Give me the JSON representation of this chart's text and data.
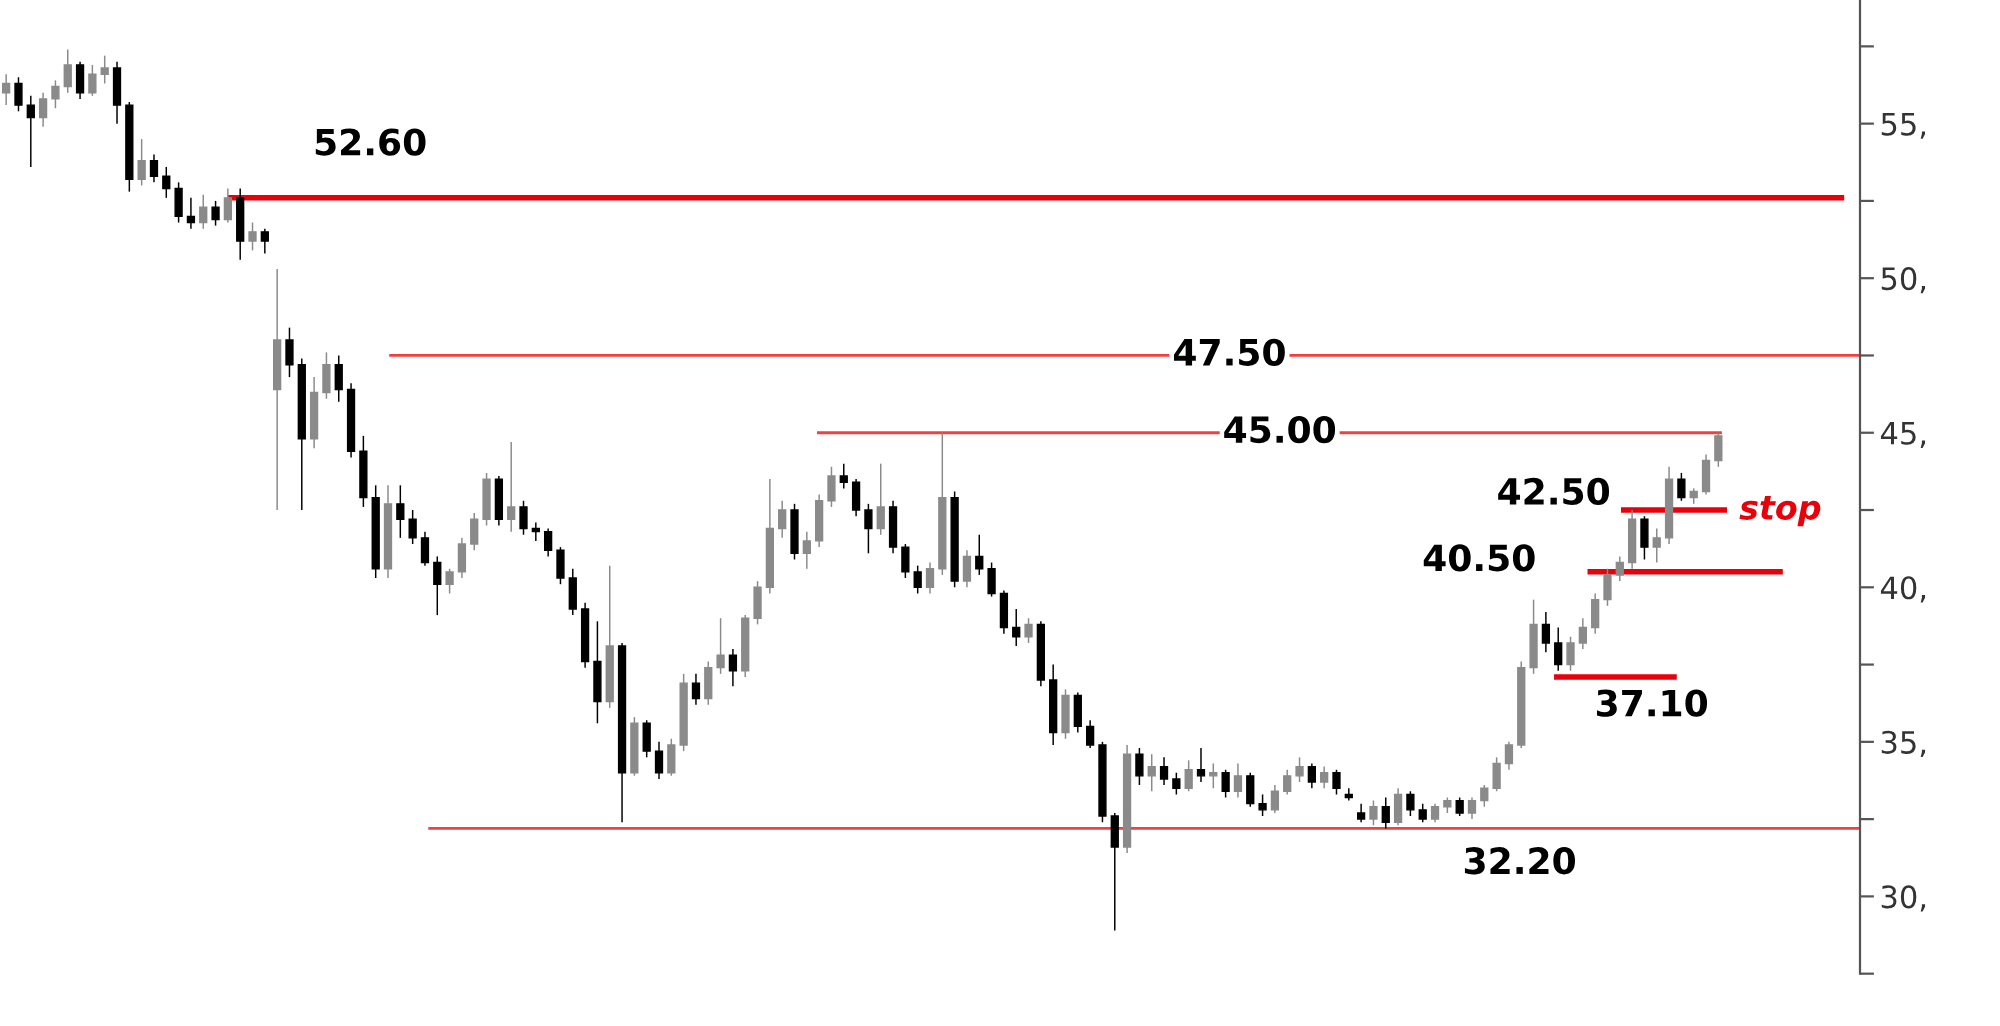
{
  "chart_data": {
    "type": "candlestick",
    "categories": [
      null,
      null,
      null,
      null,
      null,
      null,
      null,
      null,
      null,
      null,
      null,
      null,
      null,
      null,
      null,
      null,
      null,
      null,
      null,
      null,
      null,
      null,
      null,
      null,
      null,
      null,
      null,
      null,
      null,
      null,
      null,
      null,
      null,
      null,
      null,
      null,
      null,
      null,
      null,
      null,
      null,
      null,
      null,
      null,
      null,
      null,
      null,
      null,
      null,
      null,
      null,
      null,
      null,
      null,
      null,
      null,
      null,
      null,
      null,
      null,
      null,
      null,
      null,
      null,
      null,
      null,
      null,
      null,
      null,
      null,
      null,
      null,
      null,
      null,
      null,
      null,
      null,
      null,
      null,
      null,
      null,
      null,
      null,
      null,
      null,
      null,
      null,
      null,
      null,
      null,
      null,
      null,
      null,
      null,
      null,
      null,
      null,
      null,
      null,
      null,
      null,
      null,
      null,
      null,
      null,
      null,
      null,
      null,
      null,
      null,
      null,
      null,
      null,
      null,
      null,
      null,
      null,
      null,
      null,
      null,
      null,
      null,
      null,
      null,
      null,
      null,
      null,
      null,
      null,
      null,
      null,
      null,
      null,
      null,
      null,
      null,
      null,
      null,
      null,
      null,
      null,
      null,
      null,
      null,
      null,
      null,
      null,
      null,
      null,
      null,
      null
    ],
    "ohlc": [
      [
        56.0,
        56.6,
        55.6,
        56.3
      ],
      [
        56.3,
        56.5,
        55.4,
        55.6
      ],
      [
        55.6,
        55.9,
        53.6,
        55.2
      ],
      [
        55.2,
        56.0,
        54.9,
        55.8
      ],
      [
        55.8,
        56.4,
        55.5,
        56.2
      ],
      [
        56.2,
        57.4,
        56.0,
        56.9
      ],
      [
        56.9,
        57.0,
        55.8,
        56.0
      ],
      [
        56.0,
        56.9,
        55.9,
        56.6
      ],
      [
        56.6,
        57.2,
        56.3,
        56.8
      ],
      [
        56.8,
        57.0,
        55.0,
        55.6
      ],
      [
        55.6,
        55.7,
        52.8,
        53.2
      ],
      [
        53.2,
        54.5,
        53.0,
        53.8
      ],
      [
        53.8,
        54.0,
        53.1,
        53.3
      ],
      [
        53.3,
        53.6,
        52.6,
        52.9
      ],
      [
        52.9,
        53.1,
        51.8,
        52.0
      ],
      [
        52.0,
        52.6,
        51.6,
        51.8
      ],
      [
        51.8,
        52.7,
        51.6,
        52.3
      ],
      [
        52.3,
        52.5,
        51.7,
        51.9
      ],
      [
        51.9,
        52.9,
        51.8,
        52.6
      ],
      [
        52.6,
        52.9,
        50.6,
        51.2
      ],
      [
        51.2,
        51.8,
        50.9,
        51.5
      ],
      [
        51.5,
        51.6,
        50.8,
        51.2
      ],
      [
        46.4,
        50.3,
        42.5,
        48.0
      ],
      [
        48.0,
        48.4,
        46.8,
        47.2
      ],
      [
        47.2,
        47.4,
        42.5,
        44.8
      ],
      [
        44.8,
        46.8,
        44.5,
        46.3
      ],
      [
        46.3,
        47.6,
        46.1,
        47.2
      ],
      [
        47.2,
        47.5,
        46.0,
        46.4
      ],
      [
        46.4,
        46.6,
        44.2,
        44.4
      ],
      [
        44.4,
        44.9,
        42.6,
        42.9
      ],
      [
        42.9,
        43.3,
        40.3,
        40.6
      ],
      [
        40.6,
        43.3,
        40.3,
        42.7
      ],
      [
        42.7,
        43.3,
        41.6,
        42.2
      ],
      [
        42.2,
        42.5,
        41.4,
        41.6
      ],
      [
        41.6,
        41.8,
        40.7,
        40.8
      ],
      [
        40.8,
        41.0,
        39.1,
        40.1
      ],
      [
        40.1,
        40.6,
        39.8,
        40.5
      ],
      [
        40.5,
        41.6,
        40.3,
        41.4
      ],
      [
        41.4,
        42.4,
        41.2,
        42.2
      ],
      [
        42.2,
        43.7,
        42.0,
        43.5
      ],
      [
        43.5,
        43.6,
        42.0,
        42.2
      ],
      [
        42.2,
        44.7,
        41.8,
        42.6
      ],
      [
        42.6,
        42.8,
        41.7,
        41.9
      ],
      [
        41.9,
        42.1,
        41.5,
        41.8
      ],
      [
        41.8,
        41.9,
        41.0,
        41.2
      ],
      [
        41.2,
        41.3,
        40.1,
        40.3
      ],
      [
        40.3,
        40.6,
        39.1,
        39.3
      ],
      [
        39.3,
        39.5,
        37.4,
        37.6
      ],
      [
        37.6,
        38.9,
        35.6,
        36.3
      ],
      [
        36.3,
        40.7,
        36.1,
        38.1
      ],
      [
        38.1,
        38.2,
        32.4,
        34.0
      ],
      [
        34.0,
        35.8,
        33.9,
        35.6
      ],
      [
        35.6,
        35.7,
        34.5,
        34.7
      ],
      [
        34.7,
        35.0,
        33.8,
        34.0
      ],
      [
        34.0,
        35.1,
        33.9,
        34.9
      ],
      [
        34.9,
        37.2,
        34.7,
        36.9
      ],
      [
        36.9,
        37.2,
        36.2,
        36.4
      ],
      [
        36.4,
        37.6,
        36.2,
        37.4
      ],
      [
        37.4,
        39.0,
        37.2,
        37.8
      ],
      [
        37.8,
        38.0,
        36.8,
        37.3
      ],
      [
        37.3,
        39.1,
        37.1,
        39.0
      ],
      [
        39.0,
        40.2,
        38.8,
        40.0
      ],
      [
        40.0,
        43.5,
        39.8,
        41.9
      ],
      [
        41.9,
        42.8,
        41.6,
        42.5
      ],
      [
        42.5,
        42.7,
        40.9,
        41.1
      ],
      [
        41.1,
        41.8,
        40.6,
        41.5
      ],
      [
        41.5,
        43.0,
        41.3,
        42.8
      ],
      [
        42.8,
        43.9,
        42.6,
        43.6
      ],
      [
        43.6,
        44.0,
        43.2,
        43.4
      ],
      [
        43.4,
        43.5,
        42.3,
        42.5
      ],
      [
        42.5,
        42.7,
        41.1,
        41.9
      ],
      [
        41.9,
        44.0,
        41.7,
        42.6
      ],
      [
        42.6,
        42.8,
        41.1,
        41.3
      ],
      [
        41.3,
        41.4,
        40.3,
        40.5
      ],
      [
        40.5,
        40.7,
        39.8,
        40.0
      ],
      [
        40.0,
        40.8,
        39.8,
        40.6
      ],
      [
        40.6,
        45.0,
        40.4,
        42.9
      ],
      [
        42.9,
        43.1,
        40.0,
        40.2
      ],
      [
        40.2,
        41.2,
        40.0,
        41.0
      ],
      [
        41.0,
        41.7,
        40.4,
        40.6
      ],
      [
        40.6,
        40.8,
        39.7,
        39.8
      ],
      [
        39.8,
        39.9,
        38.5,
        38.7
      ],
      [
        38.7,
        39.3,
        38.1,
        38.4
      ],
      [
        38.4,
        39.0,
        38.2,
        38.8
      ],
      [
        38.8,
        38.9,
        36.8,
        37.0
      ],
      [
        37.0,
        37.5,
        34.9,
        35.3
      ],
      [
        35.3,
        36.7,
        35.1,
        36.5
      ],
      [
        36.5,
        36.6,
        35.3,
        35.5
      ],
      [
        35.5,
        35.7,
        34.8,
        34.9
      ],
      [
        34.9,
        35.0,
        32.4,
        32.6
      ],
      [
        32.6,
        32.7,
        28.9,
        31.6
      ],
      [
        31.6,
        34.9,
        31.4,
        34.6
      ],
      [
        34.6,
        34.8,
        33.6,
        33.9
      ],
      [
        33.9,
        34.6,
        33.4,
        34.2
      ],
      [
        34.2,
        34.5,
        33.6,
        33.8
      ],
      [
        33.8,
        34.0,
        33.3,
        33.5
      ],
      [
        33.5,
        34.4,
        33.4,
        34.1
      ],
      [
        34.1,
        34.8,
        33.7,
        33.9
      ],
      [
        33.9,
        34.3,
        33.5,
        34.0
      ],
      [
        34.0,
        34.1,
        33.2,
        33.4
      ],
      [
        33.4,
        34.3,
        33.2,
        33.9
      ],
      [
        33.9,
        34.0,
        32.9,
        33.0
      ],
      [
        33.0,
        33.3,
        32.6,
        32.8
      ],
      [
        32.8,
        33.6,
        32.7,
        33.4
      ],
      [
        33.4,
        34.1,
        33.3,
        33.9
      ],
      [
        33.9,
        34.5,
        33.7,
        34.2
      ],
      [
        34.2,
        34.3,
        33.5,
        33.7
      ],
      [
        33.7,
        34.2,
        33.5,
        34.0
      ],
      [
        34.0,
        34.1,
        33.3,
        33.5
      ],
      [
        33.3,
        33.5,
        33.1,
        33.2
      ],
      [
        32.7,
        33.0,
        32.4,
        32.5
      ],
      [
        32.5,
        33.1,
        32.3,
        32.9
      ],
      [
        32.9,
        33.2,
        32.2,
        32.4
      ],
      [
        32.4,
        33.5,
        32.3,
        33.3
      ],
      [
        33.3,
        33.4,
        32.6,
        32.8
      ],
      [
        32.8,
        33.0,
        32.4,
        32.5
      ],
      [
        32.5,
        33.0,
        32.4,
        32.9
      ],
      [
        32.9,
        33.2,
        32.7,
        33.1
      ],
      [
        33.1,
        33.2,
        32.6,
        32.7
      ],
      [
        32.7,
        33.2,
        32.5,
        33.1
      ],
      [
        33.1,
        33.6,
        32.9,
        33.5
      ],
      [
        33.5,
        34.5,
        33.4,
        34.3
      ],
      [
        34.3,
        35.0,
        34.1,
        34.9
      ],
      [
        34.9,
        37.6,
        34.8,
        37.4
      ],
      [
        37.4,
        39.6,
        37.2,
        38.8
      ],
      [
        38.8,
        39.2,
        37.9,
        38.2
      ],
      [
        38.2,
        38.7,
        37.3,
        37.5
      ],
      [
        37.5,
        38.4,
        37.3,
        38.2
      ],
      [
        38.2,
        39.0,
        38.0,
        38.7
      ],
      [
        38.7,
        39.8,
        38.5,
        39.6
      ],
      [
        39.6,
        40.6,
        39.4,
        40.4
      ],
      [
        40.4,
        41.0,
        40.2,
        40.8
      ],
      [
        40.8,
        42.5,
        40.6,
        42.2
      ],
      [
        42.2,
        42.3,
        40.9,
        41.3
      ],
      [
        41.3,
        41.9,
        40.8,
        41.6
      ],
      [
        41.6,
        43.9,
        41.4,
        43.5
      ],
      [
        43.5,
        43.7,
        42.8,
        42.9
      ],
      [
        42.9,
        43.2,
        42.7,
        43.1
      ],
      [
        43.1,
        44.3,
        43.0,
        44.1
      ],
      [
        44.1,
        45.0,
        43.9,
        44.9
      ],
      null,
      null,
      null,
      null,
      null,
      null,
      null,
      null,
      null,
      null,
      null
    ],
    "ylim": [
      27.5,
      59.0
    ],
    "yticks": [
      {
        "value": 27.5,
        "label": null
      },
      {
        "value": 30,
        "label": "30,"
      },
      {
        "value": 32.5,
        "label": null
      },
      {
        "value": 35,
        "label": "35,"
      },
      {
        "value": 37.5,
        "label": null
      },
      {
        "value": 40,
        "label": "40,"
      },
      {
        "value": 42.5,
        "label": null
      },
      {
        "value": 45,
        "label": "45,"
      },
      {
        "value": 47.5,
        "label": null
      },
      {
        "value": 50,
        "label": "50,"
      },
      {
        "value": 52.5,
        "label": null
      },
      {
        "value": 55,
        "label": "55,"
      },
      {
        "value": 57.5,
        "label": null
      }
    ],
    "tick_labels": "y",
    "ref_lines": [
      {
        "axis": "y",
        "value": 52.6,
        "label": "52.60",
        "color": "#e8000b"
      },
      {
        "axis": "y",
        "value": 47.5,
        "label": "47.50",
        "color": "#f04040"
      },
      {
        "axis": "y",
        "value": 45.0,
        "label": "45.00",
        "color": "#f04040"
      },
      {
        "axis": "y",
        "value": 42.5,
        "label": "42.50",
        "color": "#e8000b"
      },
      {
        "axis": "y",
        "value": 40.5,
        "label": "40.50",
        "color": "#e8000b"
      },
      {
        "axis": "y",
        "value": 37.1,
        "label": "37.10",
        "color": "#e8000b"
      },
      {
        "axis": "y",
        "value": 32.2,
        "label": "32.20",
        "color": "#f04040"
      }
    ],
    "annotations": [
      "stop"
    ]
  }
}
